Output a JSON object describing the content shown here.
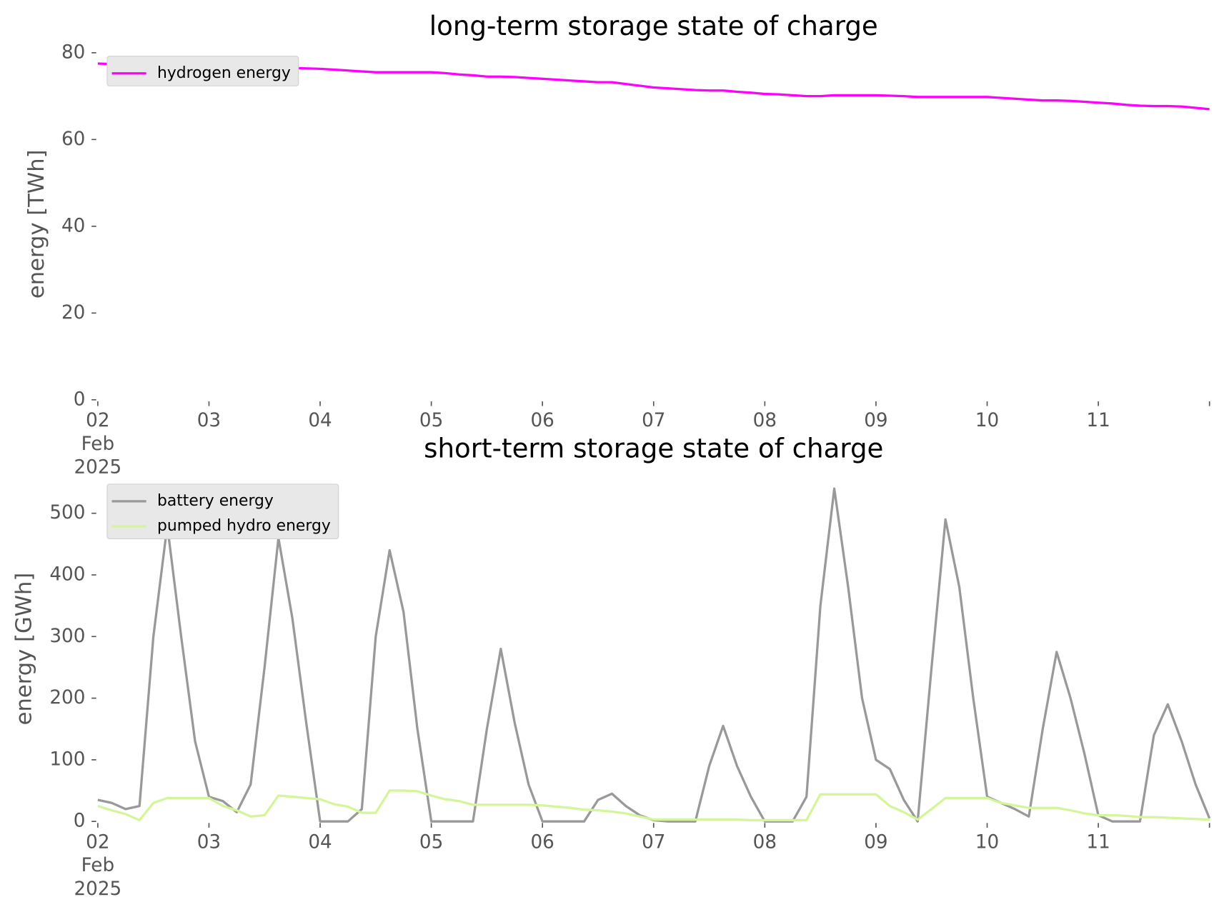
{
  "chart_data": [
    {
      "type": "line",
      "title": "long-term storage state of charge",
      "ylabel": "energy [TWh]",
      "x": [
        "2025-02-02T00:00",
        "2025-02-02T03:00",
        "2025-02-02T06:00",
        "2025-02-02T09:00",
        "2025-02-02T12:00",
        "2025-02-02T15:00",
        "2025-02-02T18:00",
        "2025-02-02T21:00",
        "2025-02-03T00:00",
        "2025-02-03T03:00",
        "2025-02-03T06:00",
        "2025-02-03T09:00",
        "2025-02-03T12:00",
        "2025-02-03T15:00",
        "2025-02-03T18:00",
        "2025-02-03T21:00",
        "2025-02-04T00:00",
        "2025-02-04T03:00",
        "2025-02-04T06:00",
        "2025-02-04T09:00",
        "2025-02-04T12:00",
        "2025-02-04T15:00",
        "2025-02-04T18:00",
        "2025-02-04T21:00",
        "2025-02-05T00:00",
        "2025-02-05T03:00",
        "2025-02-05T06:00",
        "2025-02-05T09:00",
        "2025-02-05T12:00",
        "2025-02-05T15:00",
        "2025-02-05T18:00",
        "2025-02-05T21:00",
        "2025-02-06T00:00",
        "2025-02-06T03:00",
        "2025-02-06T06:00",
        "2025-02-06T09:00",
        "2025-02-06T12:00",
        "2025-02-06T15:00",
        "2025-02-06T18:00",
        "2025-02-06T21:00",
        "2025-02-07T00:00",
        "2025-02-07T03:00",
        "2025-02-07T06:00",
        "2025-02-07T09:00",
        "2025-02-07T12:00",
        "2025-02-07T15:00",
        "2025-02-07T18:00",
        "2025-02-07T21:00",
        "2025-02-08T00:00",
        "2025-02-08T03:00",
        "2025-02-08T06:00",
        "2025-02-08T09:00",
        "2025-02-08T12:00",
        "2025-02-08T15:00",
        "2025-02-08T18:00",
        "2025-02-08T21:00",
        "2025-02-09T00:00",
        "2025-02-09T03:00",
        "2025-02-09T06:00",
        "2025-02-09T09:00",
        "2025-02-09T12:00",
        "2025-02-09T15:00",
        "2025-02-09T18:00",
        "2025-02-09T21:00",
        "2025-02-10T00:00",
        "2025-02-10T03:00",
        "2025-02-10T06:00",
        "2025-02-10T09:00",
        "2025-02-10T12:00",
        "2025-02-10T15:00",
        "2025-02-10T18:00",
        "2025-02-10T21:00",
        "2025-02-11T00:00",
        "2025-02-11T03:00",
        "2025-02-11T06:00",
        "2025-02-11T09:00",
        "2025-02-11T12:00",
        "2025-02-11T15:00",
        "2025-02-11T18:00",
        "2025-02-11T21:00",
        "2025-02-12T00:00"
      ],
      "series": [
        {
          "name": "hydrogen energy",
          "color": "#ff00ff",
          "values": [
            77.5,
            77.4,
            77.3,
            77.2,
            77.2,
            77.1,
            77.1,
            77.0,
            77.0,
            76.9,
            76.8,
            76.7,
            76.6,
            76.6,
            76.5,
            76.4,
            76.3,
            76.1,
            75.9,
            75.7,
            75.5,
            75.5,
            75.5,
            75.5,
            75.5,
            75.3,
            75.0,
            74.8,
            74.5,
            74.5,
            74.4,
            74.2,
            74.0,
            73.8,
            73.6,
            73.4,
            73.2,
            73.2,
            72.8,
            72.4,
            72.0,
            71.8,
            71.6,
            71.4,
            71.3,
            71.3,
            71.0,
            70.8,
            70.5,
            70.4,
            70.2,
            70.0,
            70.0,
            70.2,
            70.2,
            70.2,
            70.2,
            70.1,
            70.0,
            69.8,
            69.8,
            69.8,
            69.8,
            69.8,
            69.8,
            69.6,
            69.4,
            69.2,
            69.0,
            69.0,
            68.9,
            68.7,
            68.5,
            68.3,
            68.0,
            67.8,
            67.7,
            67.7,
            67.6,
            67.3,
            67.0
          ]
        }
      ],
      "xlim": [
        "2025-02-02T00:00",
        "2025-02-12T00:00"
      ],
      "xticks": [
        {
          "value": "2025-02-02T00:00",
          "label": "02\nFeb\n2025"
        },
        {
          "value": "2025-02-03T00:00",
          "label": "03"
        },
        {
          "value": "2025-02-04T00:00",
          "label": "04"
        },
        {
          "value": "2025-02-05T00:00",
          "label": "05"
        },
        {
          "value": "2025-02-06T00:00",
          "label": "06"
        },
        {
          "value": "2025-02-07T00:00",
          "label": "07"
        },
        {
          "value": "2025-02-08T00:00",
          "label": "08"
        },
        {
          "value": "2025-02-09T00:00",
          "label": "09"
        },
        {
          "value": "2025-02-10T00:00",
          "label": "10"
        },
        {
          "value": "2025-02-11T00:00",
          "label": "11"
        }
      ],
      "ylim": [
        0,
        81
      ],
      "yticks": [
        0,
        20,
        40,
        60,
        80
      ],
      "legend": "upper left"
    },
    {
      "type": "line",
      "title": "short-term storage state of charge",
      "ylabel": "energy [GWh]",
      "x": [
        "2025-02-02T00:00",
        "2025-02-02T03:00",
        "2025-02-02T06:00",
        "2025-02-02T09:00",
        "2025-02-02T12:00",
        "2025-02-02T15:00",
        "2025-02-02T18:00",
        "2025-02-02T21:00",
        "2025-02-03T00:00",
        "2025-02-03T03:00",
        "2025-02-03T06:00",
        "2025-02-03T09:00",
        "2025-02-03T12:00",
        "2025-02-03T15:00",
        "2025-02-03T18:00",
        "2025-02-03T21:00",
        "2025-02-04T00:00",
        "2025-02-04T03:00",
        "2025-02-04T06:00",
        "2025-02-04T09:00",
        "2025-02-04T12:00",
        "2025-02-04T15:00",
        "2025-02-04T18:00",
        "2025-02-04T21:00",
        "2025-02-05T00:00",
        "2025-02-05T03:00",
        "2025-02-05T06:00",
        "2025-02-05T09:00",
        "2025-02-05T12:00",
        "2025-02-05T15:00",
        "2025-02-05T18:00",
        "2025-02-05T21:00",
        "2025-02-06T00:00",
        "2025-02-06T03:00",
        "2025-02-06T06:00",
        "2025-02-06T09:00",
        "2025-02-06T12:00",
        "2025-02-06T15:00",
        "2025-02-06T18:00",
        "2025-02-06T21:00",
        "2025-02-07T00:00",
        "2025-02-07T03:00",
        "2025-02-07T06:00",
        "2025-02-07T09:00",
        "2025-02-07T12:00",
        "2025-02-07T15:00",
        "2025-02-07T18:00",
        "2025-02-07T21:00",
        "2025-02-08T00:00",
        "2025-02-08T03:00",
        "2025-02-08T06:00",
        "2025-02-08T09:00",
        "2025-02-08T12:00",
        "2025-02-08T15:00",
        "2025-02-08T18:00",
        "2025-02-08T21:00",
        "2025-02-09T00:00",
        "2025-02-09T03:00",
        "2025-02-09T06:00",
        "2025-02-09T09:00",
        "2025-02-09T12:00",
        "2025-02-09T15:00",
        "2025-02-09T18:00",
        "2025-02-09T21:00",
        "2025-02-10T00:00",
        "2025-02-10T03:00",
        "2025-02-10T06:00",
        "2025-02-10T09:00",
        "2025-02-10T12:00",
        "2025-02-10T15:00",
        "2025-02-10T18:00",
        "2025-02-10T21:00",
        "2025-02-11T00:00",
        "2025-02-11T03:00",
        "2025-02-11T06:00",
        "2025-02-11T09:00",
        "2025-02-11T12:00",
        "2025-02-11T15:00",
        "2025-02-11T18:00",
        "2025-02-11T21:00",
        "2025-02-12T00:00"
      ],
      "series": [
        {
          "name": "battery energy",
          "color": "#999999",
          "values": [
            35,
            30,
            20,
            25,
            300,
            480,
            300,
            130,
            40,
            33,
            15,
            60,
            250,
            460,
            330,
            160,
            0,
            0,
            0,
            20,
            300,
            440,
            340,
            150,
            0,
            0,
            0,
            0,
            150,
            280,
            160,
            60,
            0,
            0,
            0,
            0,
            35,
            45,
            25,
            10,
            2,
            0,
            0,
            0,
            90,
            155,
            90,
            40,
            0,
            0,
            0,
            40,
            350,
            540,
            380,
            200,
            100,
            85,
            35,
            0,
            250,
            490,
            380,
            200,
            40,
            30,
            20,
            8,
            150,
            275,
            200,
            110,
            10,
            0,
            0,
            0,
            140,
            190,
            130,
            60,
            5
          ]
        },
        {
          "name": "pumped hydro energy",
          "color": "#d4f59a",
          "values": [
            25,
            18,
            12,
            2,
            30,
            38,
            38,
            38,
            38,
            25,
            18,
            8,
            10,
            42,
            40,
            38,
            36,
            28,
            24,
            14,
            14,
            50,
            50,
            49,
            42,
            36,
            33,
            27,
            27,
            27,
            27,
            27,
            26,
            24,
            22,
            19,
            18,
            16,
            13,
            8,
            3,
            3,
            3,
            3,
            3,
            3,
            3,
            2,
            2,
            2,
            2,
            2,
            44,
            44,
            44,
            44,
            44,
            25,
            15,
            3,
            20,
            38,
            38,
            38,
            38,
            30,
            26,
            22,
            22,
            22,
            18,
            13,
            10,
            10,
            9,
            7,
            7,
            6,
            5,
            4,
            3
          ]
        }
      ],
      "xlim": [
        "2025-02-02T00:00",
        "2025-02-12T00:00"
      ],
      "xticks": [
        {
          "value": "2025-02-02T00:00",
          "label": "02\nFeb\n2025"
        },
        {
          "value": "2025-02-03T00:00",
          "label": "03"
        },
        {
          "value": "2025-02-04T00:00",
          "label": "04"
        },
        {
          "value": "2025-02-05T00:00",
          "label": "05"
        },
        {
          "value": "2025-02-06T00:00",
          "label": "06"
        },
        {
          "value": "2025-02-07T00:00",
          "label": "07"
        },
        {
          "value": "2025-02-08T00:00",
          "label": "08"
        },
        {
          "value": "2025-02-09T00:00",
          "label": "09"
        },
        {
          "value": "2025-02-10T00:00",
          "label": "10"
        },
        {
          "value": "2025-02-11T00:00",
          "label": "11"
        }
      ],
      "ylim": [
        0,
        560
      ],
      "yticks": [
        0,
        100,
        200,
        300,
        400,
        500
      ],
      "legend": "upper left"
    }
  ]
}
